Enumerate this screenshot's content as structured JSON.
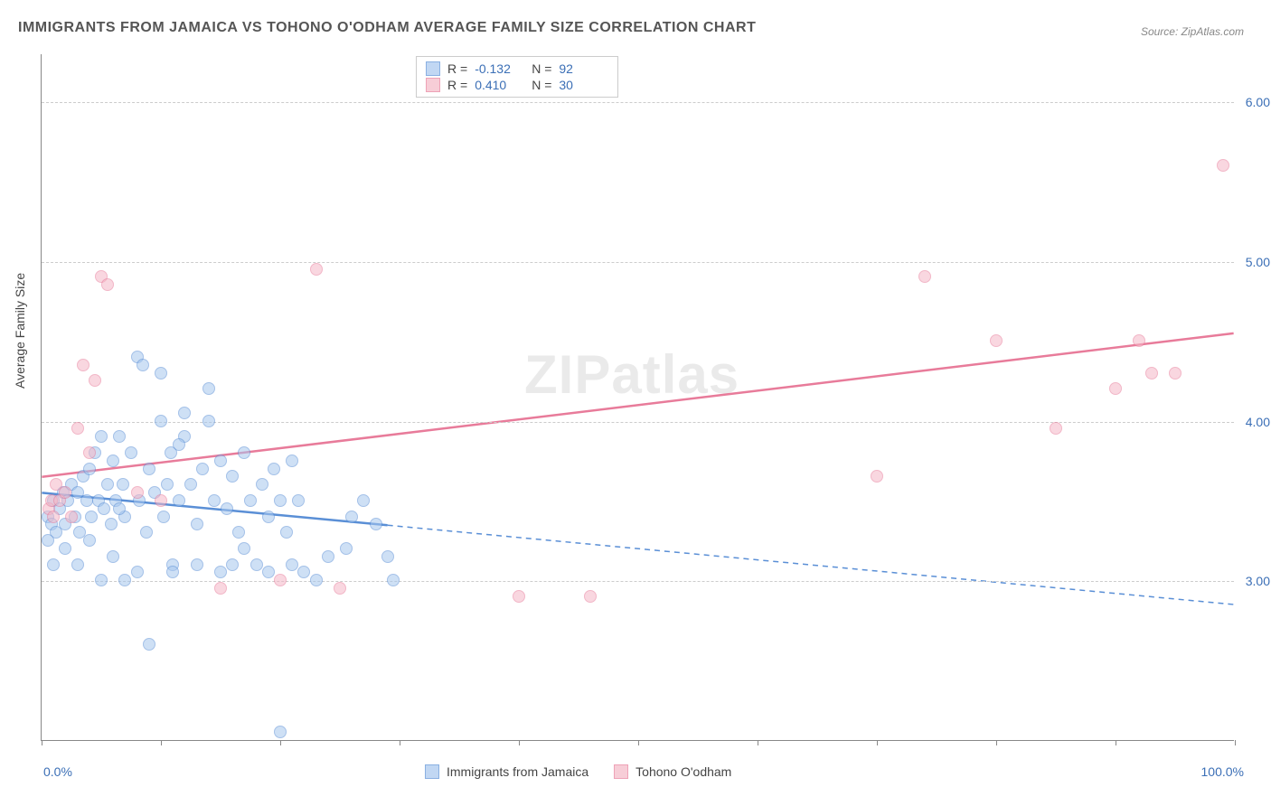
{
  "title": "IMMIGRANTS FROM JAMAICA VS TOHONO O'ODHAM AVERAGE FAMILY SIZE CORRELATION CHART",
  "source": "Source: ZipAtlas.com",
  "watermark_a": "ZIP",
  "watermark_b": "atlas",
  "y_axis_title": "Average Family Size",
  "chart": {
    "type": "scatter",
    "background_color": "#ffffff",
    "grid_color": "#cccccc",
    "xlim": [
      0,
      100
    ],
    "ylim": [
      2.0,
      6.3
    ],
    "x_label_min": "0.0%",
    "x_label_max": "100.0%",
    "y_ticks": [
      3.0,
      4.0,
      5.0,
      6.0
    ],
    "y_tick_labels": [
      "3.00",
      "4.00",
      "5.00",
      "6.00"
    ],
    "x_ticks": [
      0,
      10,
      20,
      30,
      40,
      50,
      60,
      70,
      80,
      90,
      100
    ],
    "series": [
      {
        "name": "Immigrants from Jamaica",
        "key": "jamaica",
        "fill": "#a7c7ee",
        "stroke": "#5a8fd6",
        "fill_opacity": 0.55,
        "R": "-0.132",
        "N": "92",
        "trend": {
          "y_at_x0": 3.55,
          "y_at_x100": 2.85,
          "solid_until_x": 29
        },
        "points": [
          [
            0.5,
            3.4
          ],
          [
            0.8,
            3.35
          ],
          [
            1.0,
            3.5
          ],
          [
            1.2,
            3.3
          ],
          [
            1.5,
            3.45
          ],
          [
            1.8,
            3.55
          ],
          [
            2.0,
            3.35
          ],
          [
            2.2,
            3.5
          ],
          [
            2.5,
            3.6
          ],
          [
            2.8,
            3.4
          ],
          [
            3.0,
            3.55
          ],
          [
            3.2,
            3.3
          ],
          [
            3.5,
            3.65
          ],
          [
            3.8,
            3.5
          ],
          [
            4.0,
            3.7
          ],
          [
            4.2,
            3.4
          ],
          [
            4.5,
            3.8
          ],
          [
            4.8,
            3.5
          ],
          [
            5.0,
            3.9
          ],
          [
            5.2,
            3.45
          ],
          [
            5.5,
            3.6
          ],
          [
            5.8,
            3.35
          ],
          [
            6.0,
            3.75
          ],
          [
            6.2,
            3.5
          ],
          [
            6.5,
            3.9
          ],
          [
            6.8,
            3.6
          ],
          [
            7.0,
            3.4
          ],
          [
            7.5,
            3.8
          ],
          [
            8.0,
            4.4
          ],
          [
            8.2,
            3.5
          ],
          [
            8.5,
            4.35
          ],
          [
            8.8,
            3.3
          ],
          [
            9.0,
            3.7
          ],
          [
            9.5,
            3.55
          ],
          [
            10.0,
            4.0
          ],
          [
            10.2,
            3.4
          ],
          [
            10.5,
            3.6
          ],
          [
            10.8,
            3.8
          ],
          [
            11.0,
            3.1
          ],
          [
            11.5,
            3.5
          ],
          [
            12.0,
            3.9
          ],
          [
            12.5,
            3.6
          ],
          [
            13.0,
            3.35
          ],
          [
            13.5,
            3.7
          ],
          [
            14.0,
            4.0
          ],
          [
            14.5,
            3.5
          ],
          [
            15.0,
            3.75
          ],
          [
            15.5,
            3.45
          ],
          [
            16.0,
            3.65
          ],
          [
            16.5,
            3.3
          ],
          [
            17.0,
            3.8
          ],
          [
            17.5,
            3.5
          ],
          [
            18.0,
            3.1
          ],
          [
            18.5,
            3.6
          ],
          [
            19.0,
            3.4
          ],
          [
            19.5,
            3.7
          ],
          [
            20.0,
            3.5
          ],
          [
            20.5,
            3.3
          ],
          [
            21.0,
            3.75
          ],
          [
            21.5,
            3.5
          ],
          [
            9.0,
            2.6
          ],
          [
            11.0,
            3.05
          ],
          [
            13.0,
            3.1
          ],
          [
            15.0,
            3.05
          ],
          [
            17.0,
            3.2
          ],
          [
            6.0,
            3.15
          ],
          [
            7.0,
            3.0
          ],
          [
            23.0,
            3.0
          ],
          [
            24.0,
            3.15
          ],
          [
            22.0,
            3.05
          ],
          [
            26.0,
            3.4
          ],
          [
            27.0,
            3.5
          ],
          [
            28.0,
            3.35
          ],
          [
            29.0,
            3.15
          ],
          [
            29.5,
            3.0
          ],
          [
            14.0,
            4.2
          ],
          [
            12.0,
            4.05
          ],
          [
            10.0,
            4.3
          ],
          [
            25.5,
            3.2
          ],
          [
            21.0,
            3.1
          ],
          [
            19.0,
            3.05
          ],
          [
            16.0,
            3.1
          ],
          [
            4.0,
            3.25
          ],
          [
            5.0,
            3.0
          ],
          [
            3.0,
            3.1
          ],
          [
            2.0,
            3.2
          ],
          [
            1.0,
            3.1
          ],
          [
            0.5,
            3.25
          ],
          [
            20.0,
            2.05
          ],
          [
            8.0,
            3.05
          ],
          [
            6.5,
            3.45
          ],
          [
            11.5,
            3.85
          ]
        ]
      },
      {
        "name": "Tohono O'odham",
        "key": "tohono",
        "fill": "#f5b8c7",
        "stroke": "#e87b9a",
        "fill_opacity": 0.55,
        "R": "0.410",
        "N": "30",
        "trend": {
          "y_at_x0": 3.65,
          "y_at_x100": 4.55,
          "solid_until_x": 100
        },
        "points": [
          [
            0.6,
            3.45
          ],
          [
            0.8,
            3.5
          ],
          [
            1.0,
            3.4
          ],
          [
            1.2,
            3.6
          ],
          [
            1.5,
            3.5
          ],
          [
            2.0,
            3.55
          ],
          [
            2.5,
            3.4
          ],
          [
            3.0,
            3.95
          ],
          [
            3.5,
            4.35
          ],
          [
            4.0,
            3.8
          ],
          [
            4.5,
            4.25
          ],
          [
            5.0,
            4.9
          ],
          [
            5.5,
            4.85
          ],
          [
            8.0,
            3.55
          ],
          [
            10.0,
            3.5
          ],
          [
            15.0,
            2.95
          ],
          [
            20.0,
            3.0
          ],
          [
            23.0,
            4.95
          ],
          [
            25.0,
            2.95
          ],
          [
            40.0,
            2.9
          ],
          [
            46.0,
            2.9
          ],
          [
            70.0,
            3.65
          ],
          [
            74.0,
            4.9
          ],
          [
            80.0,
            4.5
          ],
          [
            85.0,
            3.95
          ],
          [
            90.0,
            4.2
          ],
          [
            92.0,
            4.5
          ],
          [
            93.0,
            4.3
          ],
          [
            95.0,
            4.3
          ],
          [
            99.0,
            5.6
          ]
        ]
      }
    ]
  },
  "legend_top_labels": {
    "R": "R =",
    "N": "N ="
  },
  "colors": {
    "axis_value": "#3b6fb6",
    "title_text": "#555555"
  }
}
